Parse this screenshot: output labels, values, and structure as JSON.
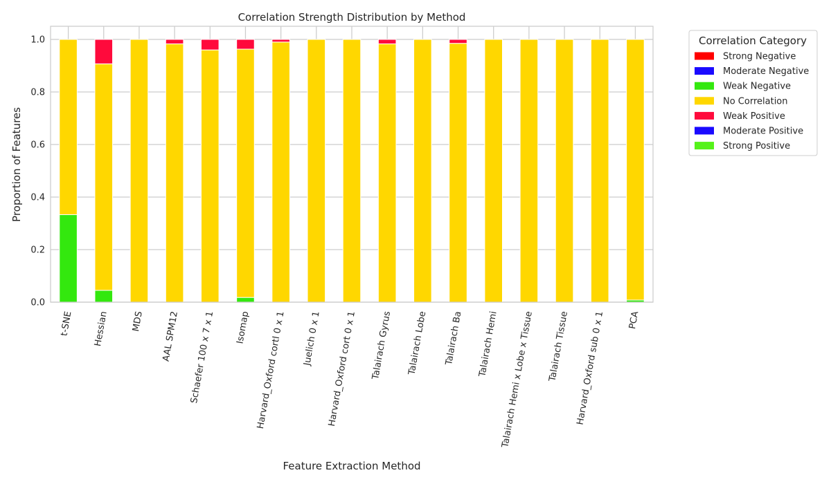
{
  "chart_data": {
    "type": "bar",
    "stacked": true,
    "title": "Correlation Strength Distribution by Method",
    "xlabel": "Feature Extraction Method",
    "ylabel": "Proportion of Features",
    "ylim": [
      0,
      1.05
    ],
    "yticks": [
      "0.0",
      "0.2",
      "0.4",
      "0.6",
      "0.8",
      "1.0"
    ],
    "grid": true,
    "legend_title": "Correlation Category",
    "legend_position": "outside-right",
    "categories": [
      "t-SNE",
      "Hessian",
      "MDS",
      "AAL SPM12",
      "Schaefer 100 x 7 x 1",
      "Isomap",
      "Harvard_Oxford cortl 0 x 1",
      "Juelich 0 x 1",
      "Harvard_Oxford cort 0 x 1",
      "Talairach Gyrus",
      "Talairach Lobe",
      "Talairach Ba",
      "Talairach Hemi",
      "Talairach Hemi x Lobe x Tissue",
      "Talairach Tissue",
      "Harvard_Oxford sub 0 x 1",
      "PCA"
    ],
    "series": [
      {
        "name": "Strong Negative",
        "color": "#ff0000",
        "values": [
          0,
          0,
          0,
          0,
          0,
          0,
          0,
          0,
          0,
          0,
          0,
          0,
          0,
          0,
          0,
          0,
          0
        ]
      },
      {
        "name": "Moderate Negative",
        "color": "#1a0aff",
        "values": [
          0,
          0,
          0,
          0,
          0,
          0,
          0,
          0,
          0,
          0,
          0,
          0,
          0,
          0,
          0,
          0,
          0
        ]
      },
      {
        "name": "Weak Negative",
        "color": "#33e80e",
        "values": [
          0.333,
          0.045,
          0,
          0,
          0,
          0.018,
          0,
          0,
          0,
          0,
          0,
          0,
          0,
          0,
          0,
          0,
          0.008
        ]
      },
      {
        "name": "No Correlation",
        "color": "#ffd700",
        "values": [
          0.667,
          0.862,
          1.0,
          0.983,
          0.96,
          0.945,
          0.99,
          1.0,
          1.0,
          0.983,
          1.0,
          0.985,
          1.0,
          1.0,
          1.0,
          1.0,
          0.992
        ]
      },
      {
        "name": "Weak Positive",
        "color": "#ff0a3c",
        "values": [
          0,
          0.093,
          0,
          0.017,
          0.04,
          0.037,
          0.01,
          0,
          0,
          0.017,
          0,
          0.015,
          0,
          0,
          0,
          0,
          0
        ]
      },
      {
        "name": "Moderate Positive",
        "color": "#1a0aff",
        "values": [
          0,
          0,
          0,
          0,
          0,
          0,
          0,
          0,
          0,
          0,
          0,
          0,
          0,
          0,
          0,
          0,
          0
        ]
      },
      {
        "name": "Strong Positive",
        "color": "#55f21a",
        "values": [
          0,
          0,
          0,
          0,
          0,
          0,
          0,
          0,
          0,
          0,
          0,
          0,
          0,
          0,
          0,
          0,
          0
        ]
      }
    ]
  }
}
